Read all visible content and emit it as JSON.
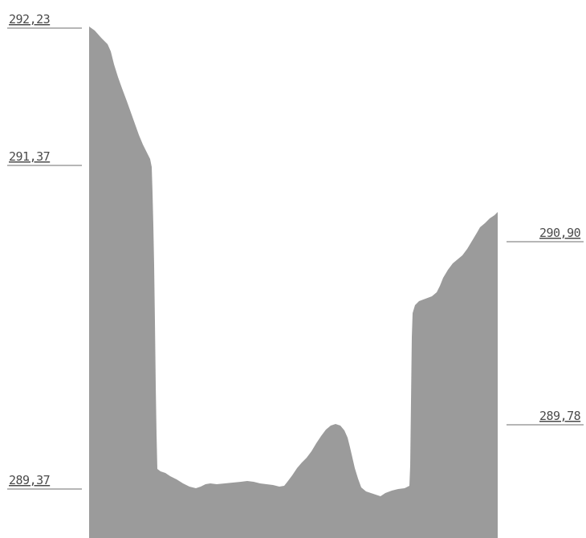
{
  "profile": {
    "fill_color": "#9b9b9b",
    "line_color": "#6e6e6e",
    "text_color": "#4a4a4a",
    "labels": [
      {
        "id": "top-left",
        "text": "292,23",
        "side": "left"
      },
      {
        "id": "mid-left",
        "text": "291,37",
        "side": "left"
      },
      {
        "id": "bottom-left",
        "text": "289,37",
        "side": "left"
      },
      {
        "id": "top-right",
        "text": "290,90",
        "side": "right"
      },
      {
        "id": "bottom-right",
        "text": "289,78",
        "side": "right"
      }
    ]
  }
}
